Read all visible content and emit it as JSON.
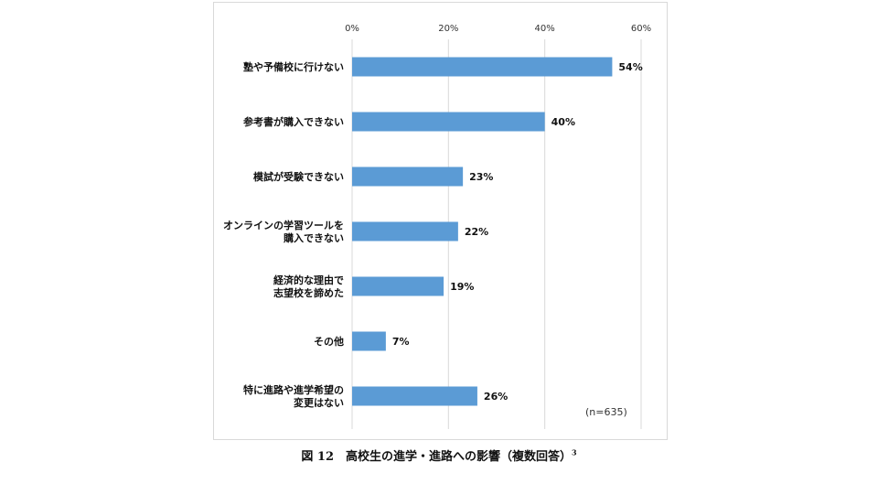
{
  "chart_data": {
    "type": "bar",
    "orientation": "horizontal",
    "categories": [
      [
        "塾や予備校に行けない"
      ],
      [
        "参考書が購入できない"
      ],
      [
        "模試が受験できない"
      ],
      [
        "オンラインの学習ツールを",
        "購入できない"
      ],
      [
        "経済的な理由で",
        "志望校を諦めた"
      ],
      [
        "その他"
      ],
      [
        "特に進路や進学希望の",
        "変更はない"
      ]
    ],
    "values": [
      54,
      40,
      23,
      22,
      19,
      7,
      26
    ],
    "value_labels": [
      "54%",
      "40%",
      "23%",
      "22%",
      "19%",
      "7%",
      "26%"
    ],
    "xlim": [
      0,
      60
    ],
    "ticks": [
      0,
      20,
      40,
      60
    ],
    "tick_labels": [
      "0%",
      "20%",
      "40%",
      "60%"
    ],
    "grid": true,
    "bar_color": "#5b9bd5",
    "note": "(n=635)"
  },
  "caption": {
    "text": "図 12　高校生の進学・進路への影響（複数回答）",
    "footnote": "3"
  }
}
